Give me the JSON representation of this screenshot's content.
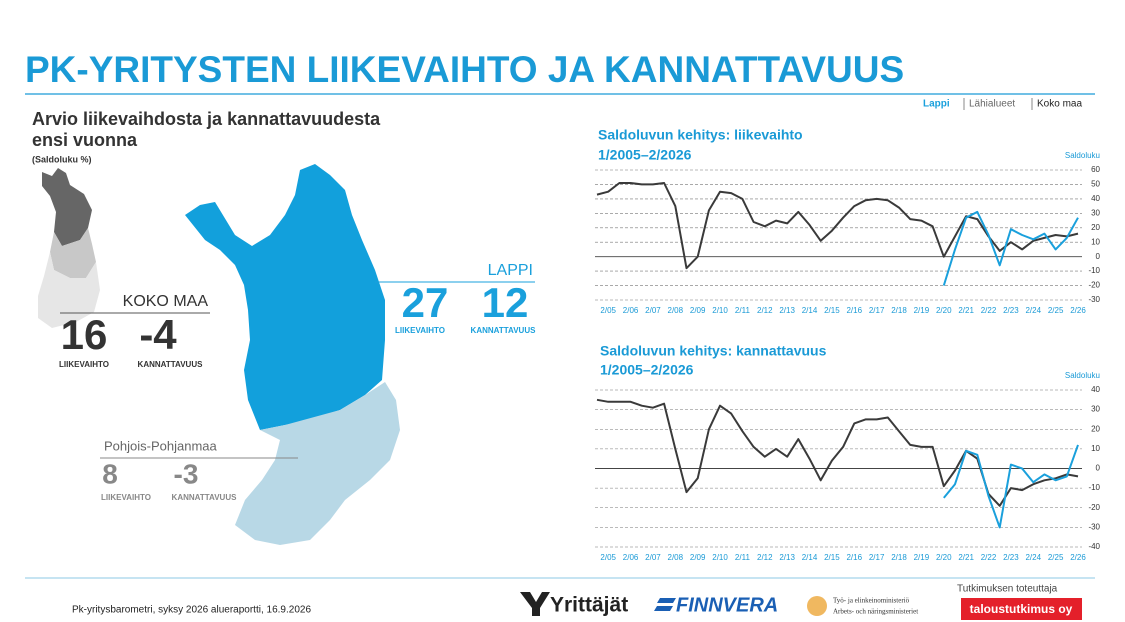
{
  "header": {
    "title": "PK-YRITYSTEN LIIKEVAIHTO JA KANNATTAVUUS",
    "legend": [
      "Lappi",
      "Lähialueet",
      "Koko maa"
    ]
  },
  "left": {
    "title": [
      "Arvio liikevaihdosta ja kannattavuudesta",
      "ensi vuonna"
    ],
    "subtitle": "(Saldoluku %)",
    "regions": [
      {
        "name": "KOKO MAA",
        "values": [
          16,
          -4
        ],
        "labels": [
          "LIIKEVAIHTO",
          "KANNATTAVUUS"
        ]
      },
      {
        "name": "LAPPI",
        "values": [
          27,
          12
        ],
        "labels": [
          "LIIKEVAIHTO",
          "KANNATTAVUUS"
        ]
      },
      {
        "name": "Pohjois-Pohjanmaa",
        "values": [
          8,
          -3
        ],
        "labels": [
          "LIIKEVAIHTO",
          "KANNATTAVUUS"
        ]
      }
    ]
  },
  "chart_data": [
    {
      "type": "line",
      "title": "Saldoluvun kehitys: liikevaihto",
      "subtitle": "1/2005–2/2026",
      "y_label": "Saldoluku",
      "categories": [
        null,
        "2/05",
        null,
        "2/06",
        null,
        "2/07",
        null,
        "2/08",
        null,
        "2/09",
        null,
        "2/10",
        null,
        "2/11",
        null,
        "2/12",
        null,
        "2/13",
        null,
        "2/14",
        null,
        "2/15",
        null,
        "2/16",
        null,
        "2/17",
        null,
        "2/18",
        null,
        "2/19",
        null,
        "2/20",
        null,
        "2/21",
        null,
        "2/22",
        null,
        "2/23",
        null,
        "2/24",
        null,
        "2/25",
        null,
        "2/26"
      ],
      "series": [
        {
          "name": "Koko maa",
          "color": "#3a3a3a",
          "values": [
            43,
            45,
            51,
            51,
            50,
            50,
            51,
            35,
            -8,
            0,
            32,
            45,
            44,
            40,
            24,
            21,
            25,
            23,
            31,
            22,
            11,
            18,
            27,
            35,
            39,
            40,
            39,
            34,
            26,
            25,
            21,
            0,
            14,
            28,
            26,
            14,
            4,
            10,
            5,
            11,
            13,
            15,
            14,
            16
          ]
        },
        {
          "name": "Lappi",
          "color": "#1aa0dc",
          "values": [
            null,
            null,
            null,
            null,
            null,
            null,
            null,
            null,
            null,
            null,
            null,
            null,
            null,
            null,
            null,
            null,
            null,
            null,
            null,
            null,
            null,
            null,
            null,
            null,
            null,
            null,
            null,
            null,
            null,
            null,
            null,
            -20,
            5,
            27,
            31,
            15,
            -6,
            19,
            15,
            12,
            16,
            5,
            13,
            27
          ]
        }
      ],
      "ylim": [
        -30,
        60
      ],
      "yticks": [
        60,
        50,
        40,
        30,
        20,
        10,
        0,
        -10,
        -20,
        -30
      ],
      "grid": true
    },
    {
      "type": "line",
      "title": "Saldoluvun kehitys: kannattavuus",
      "subtitle": "1/2005–2/2026",
      "y_label": "Saldoluku",
      "categories": [
        null,
        "2/05",
        null,
        "2/06",
        null,
        "2/07",
        null,
        "2/08",
        null,
        "2/09",
        null,
        "2/10",
        null,
        "2/11",
        null,
        "2/12",
        null,
        "2/13",
        null,
        "2/14",
        null,
        "2/15",
        null,
        "2/16",
        null,
        "2/17",
        null,
        "2/18",
        null,
        "2/19",
        null,
        "2/20",
        null,
        "2/21",
        null,
        "2/22",
        null,
        "2/23",
        null,
        "2/24",
        null,
        "2/25",
        null,
        "2/26"
      ],
      "series": [
        {
          "name": "Koko maa",
          "color": "#3a3a3a",
          "values": [
            35,
            34,
            34,
            34,
            32,
            31,
            33,
            10,
            -12,
            -5,
            20,
            32,
            28,
            19,
            11,
            6,
            10,
            6,
            15,
            5,
            -6,
            4,
            11,
            23,
            25,
            25,
            26,
            19,
            12,
            11,
            11,
            -9,
            -1,
            9,
            5,
            -13,
            -19,
            -10,
            -11,
            -8,
            -6,
            -5,
            -3,
            -4
          ]
        },
        {
          "name": "Lappi",
          "color": "#1aa0dc",
          "values": [
            null,
            null,
            null,
            null,
            null,
            null,
            null,
            null,
            null,
            null,
            null,
            null,
            null,
            null,
            null,
            null,
            null,
            null,
            null,
            null,
            null,
            null,
            null,
            null,
            null,
            null,
            null,
            null,
            null,
            null,
            null,
            -15,
            -8,
            9,
            7,
            -14,
            -30,
            2,
            0,
            -7,
            -3,
            -6,
            -4,
            12
          ]
        }
      ],
      "ylim": [
        -40,
        40
      ],
      "yticks": [
        40,
        30,
        20,
        10,
        0,
        -10,
        -20,
        -30,
        -40
      ],
      "grid": true
    }
  ],
  "footer": {
    "source": "Pk-yritysbarometri, syksy 2026 alueraportti, 16.9.2026",
    "logos": [
      "Yrittäjät",
      "FINNVERA",
      "Työ- ja elinkeinoministeriö",
      "Arbets- och näringsministeriet"
    ],
    "provider_label": "Tutkimuksen toteuttaja",
    "provider": "taloustutkimus oy"
  }
}
